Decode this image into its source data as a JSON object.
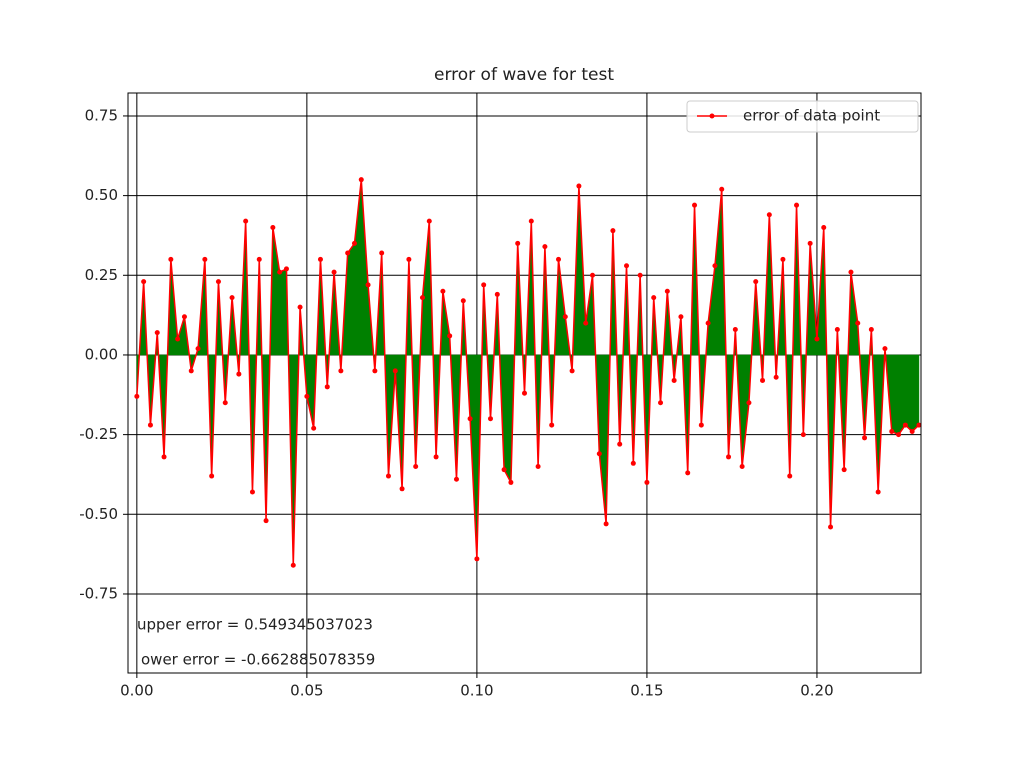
{
  "chart_data": {
    "type": "line",
    "title": "error of wave for test",
    "x": [
      0,
      0.002,
      0.004,
      0.006,
      0.008,
      0.01,
      0.012,
      0.014,
      0.016,
      0.018,
      0.02,
      0.022,
      0.024,
      0.026,
      0.028,
      0.03,
      0.032,
      0.034,
      0.036,
      0.038,
      0.04,
      0.042,
      0.044,
      0.046,
      0.048,
      0.05,
      0.052,
      0.054,
      0.056,
      0.058,
      0.06,
      0.062,
      0.064,
      0.066,
      0.068,
      0.07,
      0.072,
      0.074,
      0.076,
      0.078,
      0.08,
      0.082,
      0.084,
      0.086,
      0.088,
      0.09,
      0.092,
      0.094,
      0.096,
      0.098,
      0.1,
      0.102,
      0.104,
      0.106,
      0.108,
      0.11,
      0.112,
      0.114,
      0.116,
      0.118,
      0.12,
      0.122,
      0.124,
      0.126,
      0.128,
      0.13,
      0.132,
      0.134,
      0.136,
      0.138,
      0.14,
      0.142,
      0.144,
      0.146,
      0.148,
      0.15,
      0.152,
      0.154,
      0.156,
      0.158,
      0.16,
      0.162,
      0.164,
      0.166,
      0.168,
      0.17,
      0.172,
      0.174,
      0.176,
      0.178,
      0.18,
      0.182,
      0.184,
      0.186,
      0.188,
      0.19,
      0.192,
      0.194,
      0.196,
      0.198,
      0.2,
      0.202,
      0.204,
      0.206,
      0.208,
      0.21,
      0.212,
      0.214,
      0.216,
      0.218,
      0.22,
      0.222,
      0.224,
      0.226,
      0.228,
      0.23
    ],
    "series": [
      {
        "name": "error of data point",
        "color": "#ff0000",
        "fill_color": "#008000",
        "values": [
          -0.13,
          0.23,
          -0.22,
          0.07,
          -0.32,
          0.3,
          0.05,
          0.12,
          -0.05,
          0.02,
          0.3,
          -0.38,
          0.23,
          -0.15,
          0.18,
          -0.06,
          0.42,
          -0.43,
          0.3,
          -0.52,
          0.4,
          0.26,
          0.27,
          -0.66,
          0.15,
          -0.13,
          -0.23,
          0.3,
          -0.1,
          0.26,
          -0.05,
          0.32,
          0.35,
          0.55,
          0.22,
          -0.05,
          0.32,
          -0.38,
          -0.05,
          -0.42,
          0.3,
          -0.35,
          0.18,
          0.42,
          -0.32,
          0.2,
          0.06,
          -0.39,
          0.17,
          -0.2,
          -0.64,
          0.22,
          -0.2,
          0.19,
          -0.36,
          -0.4,
          0.35,
          -0.12,
          0.42,
          -0.35,
          0.34,
          -0.22,
          0.3,
          0.12,
          -0.05,
          0.53,
          0.1,
          0.25,
          -0.31,
          -0.53,
          0.39,
          -0.28,
          0.28,
          -0.34,
          0.25,
          -0.4,
          0.18,
          -0.15,
          0.2,
          -0.08,
          0.12,
          -0.37,
          0.47,
          -0.22,
          0.1,
          0.28,
          0.52,
          -0.32,
          0.08,
          -0.35,
          -0.15,
          0.23,
          -0.08,
          0.44,
          -0.07,
          0.3,
          -0.38,
          0.47,
          -0.25,
          0.35,
          0.05,
          0.4,
          -0.54,
          0.08,
          -0.36,
          0.26,
          0.1,
          -0.26,
          0.08,
          -0.43,
          0.02,
          -0.24,
          -0.25,
          -0.22,
          -0.24,
          -0.22
        ]
      }
    ],
    "xlim": [
      -0.0026,
      0.2306
    ],
    "ylim": [
      -0.998,
      0.822
    ],
    "xticks": [
      {
        "value": 0,
        "label": "0.00"
      },
      0.05,
      {
        "value": 0.1,
        "label": "0.10"
      },
      0.15,
      {
        "value": 0.2,
        "label": "0.20"
      }
    ],
    "yticks": [
      -0.75,
      {
        "value": -0.5,
        "label": "-0.50"
      },
      -0.25,
      {
        "value": 0,
        "label": "0.00"
      },
      0.25,
      {
        "value": 0.5,
        "label": "0.50"
      },
      0.75
    ],
    "grid": true,
    "legend": "upper right",
    "annotations": [
      "upper error = 0.549345037023",
      "ower error = -0.662885078359"
    ]
  }
}
